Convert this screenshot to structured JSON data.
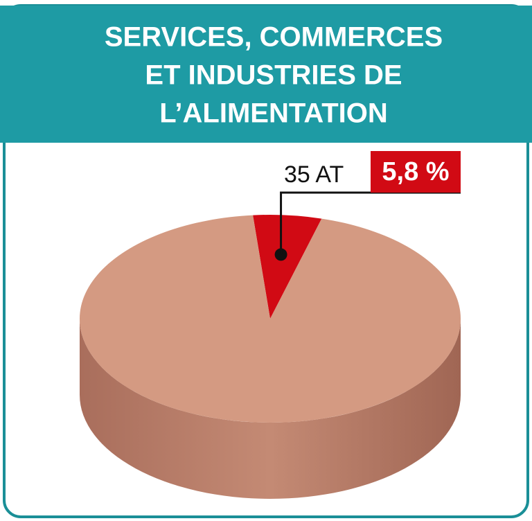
{
  "chart_data": {
    "type": "pie",
    "title": [
      "SERVICES, COMMERCES",
      "ET INDUSTRIES DE",
      "L’ALIMENTATION"
    ],
    "categories": [
      "35 AT",
      null
    ],
    "values": [
      5.8,
      94.2
    ],
    "value_labels": [
      "5,8 %",
      null
    ],
    "colors": [
      "#d10a14",
      "#d49a82"
    ]
  }
}
